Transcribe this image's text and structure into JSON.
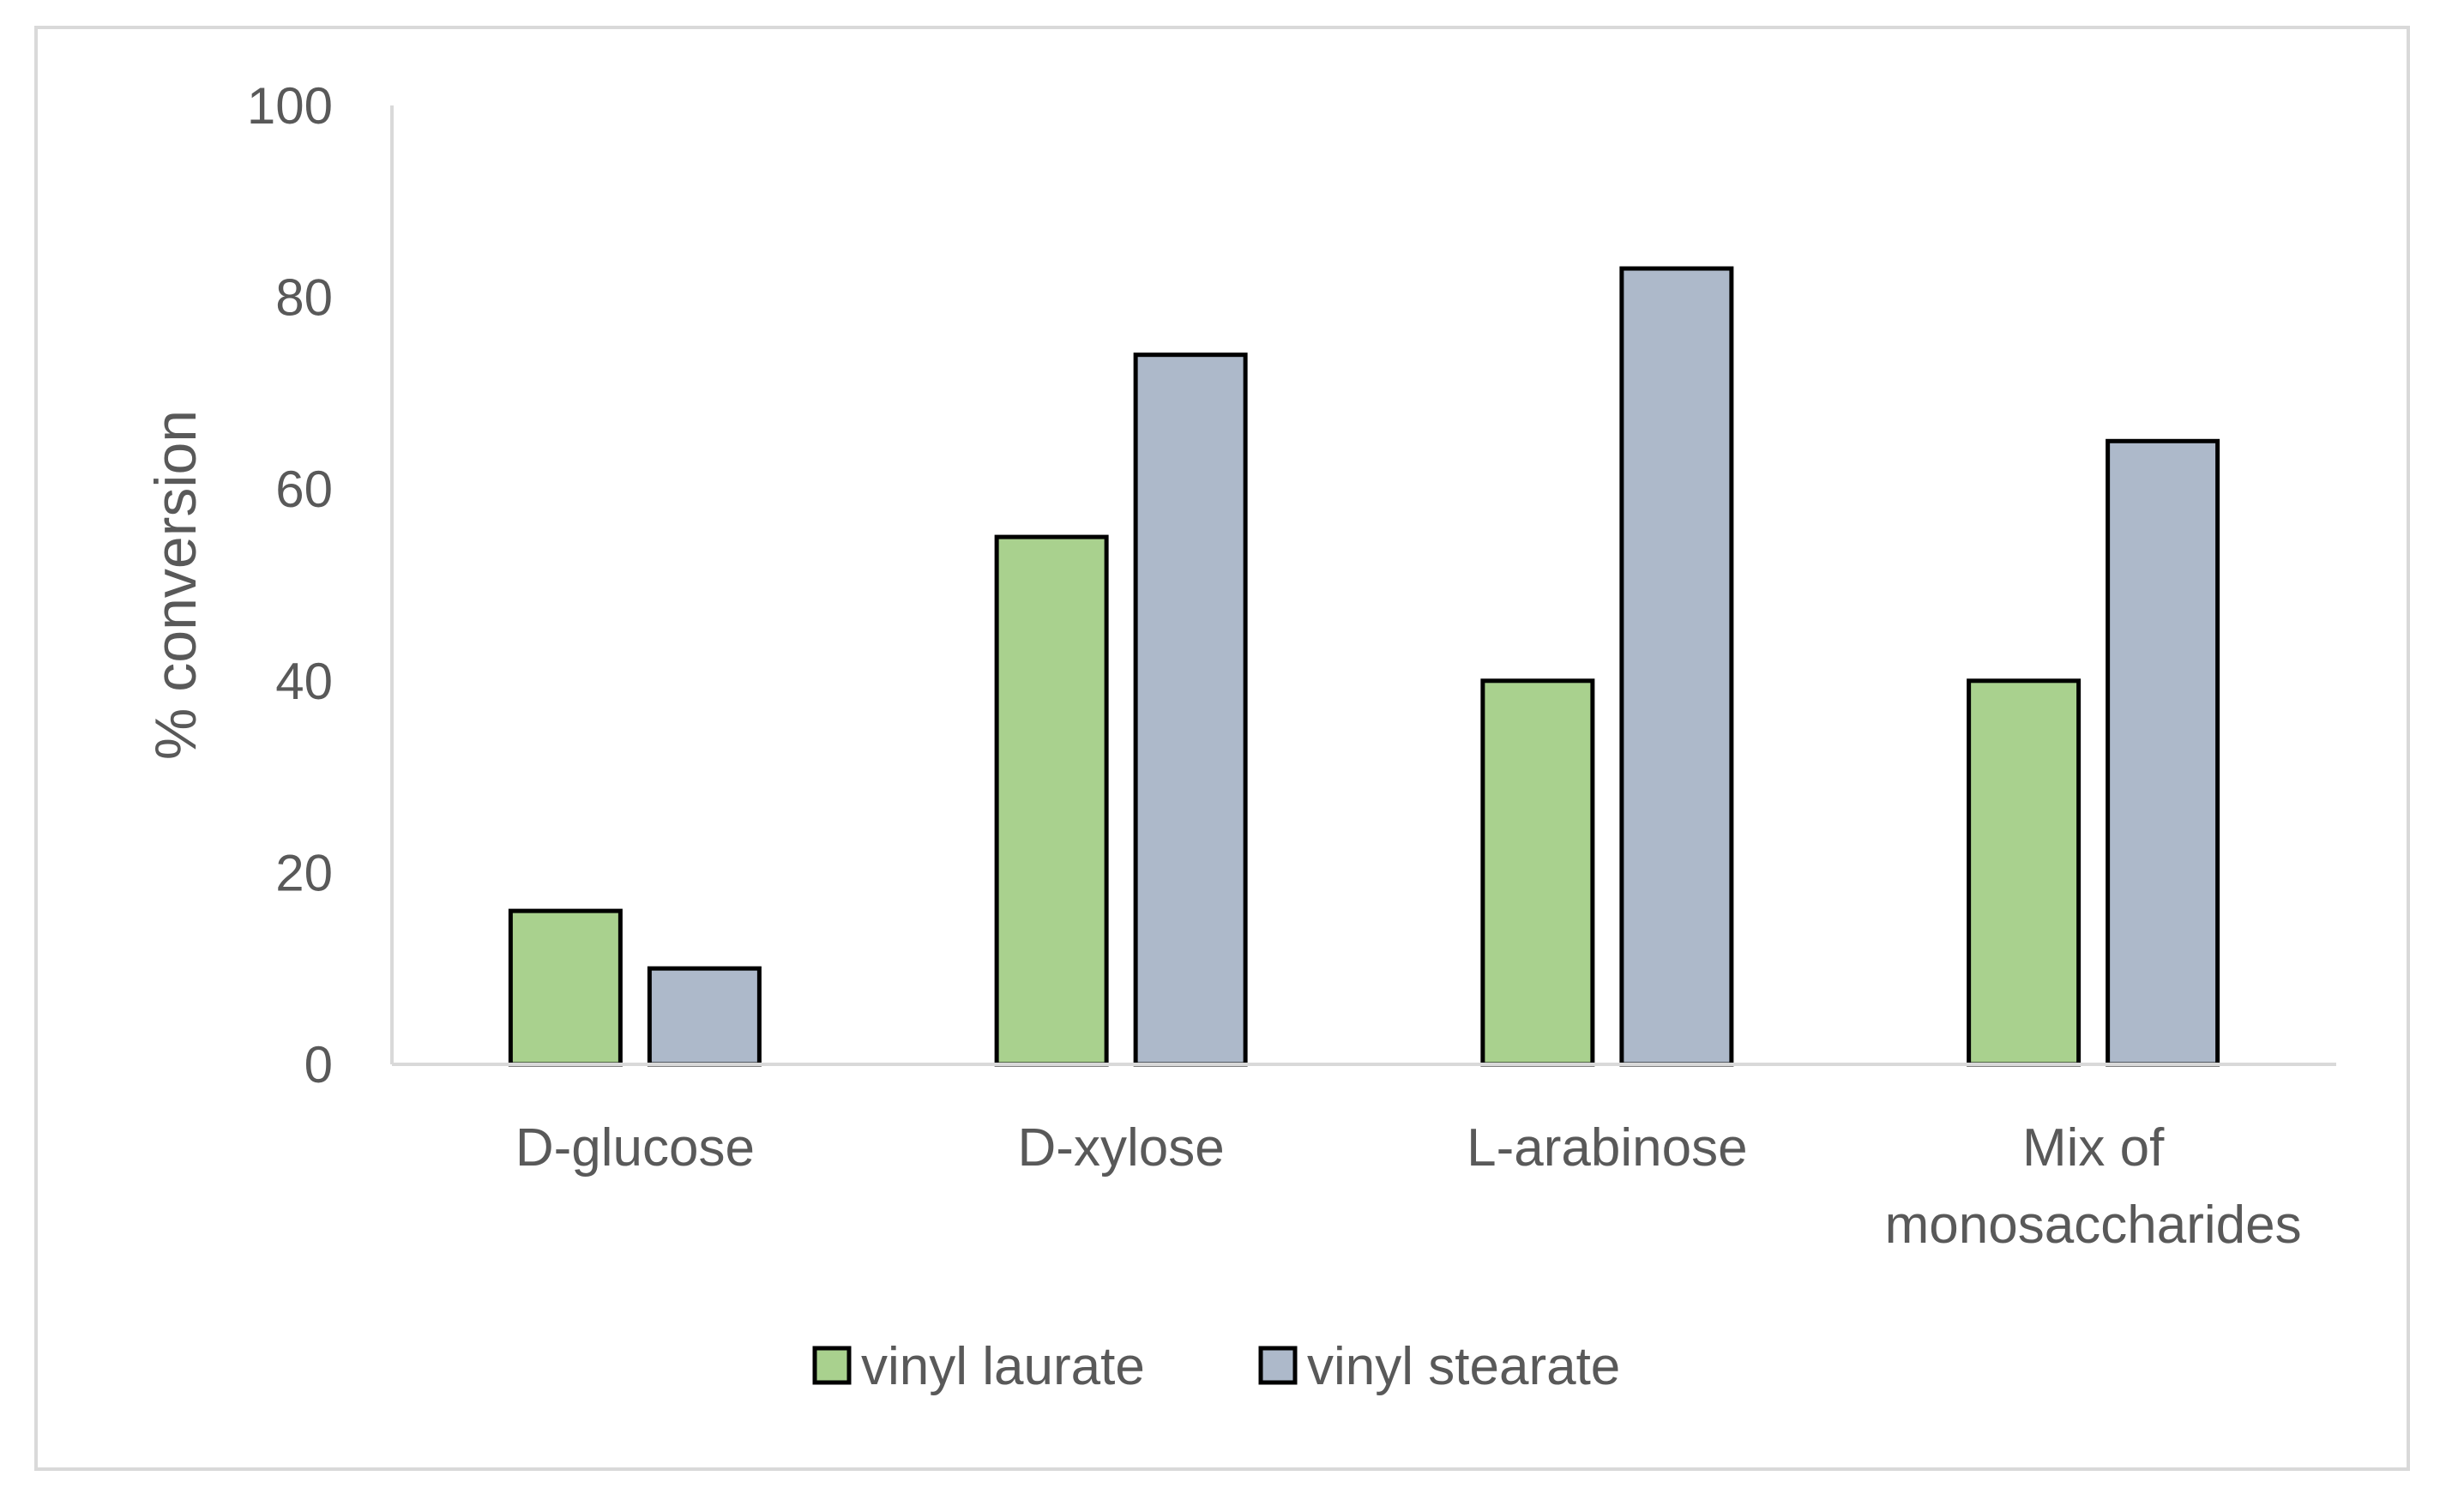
{
  "chart_data": {
    "type": "bar",
    "categories": [
      [
        "D-glucose"
      ],
      [
        "D-xylose"
      ],
      [
        "L-arabinose"
      ],
      [
        "Mix of",
        "monosaccharides"
      ]
    ],
    "series": [
      {
        "name": "vinyl laurate",
        "values": [
          16,
          55,
          40,
          40
        ],
        "color": "#a9d18e"
      },
      {
        "name": "vinyl stearate",
        "values": [
          10,
          74,
          83,
          65
        ],
        "color": "#adb9ca"
      }
    ],
    "ylabel": "% conversion",
    "xlabel": "",
    "title": "",
    "ylim": [
      0,
      100
    ],
    "yticks": [
      0,
      20,
      40,
      60,
      80,
      100
    ],
    "grid": false,
    "legend_position": "bottom",
    "colors": {
      "axis": "#d9d9d9",
      "text": "#595959",
      "bar_outline": "#000000"
    }
  }
}
